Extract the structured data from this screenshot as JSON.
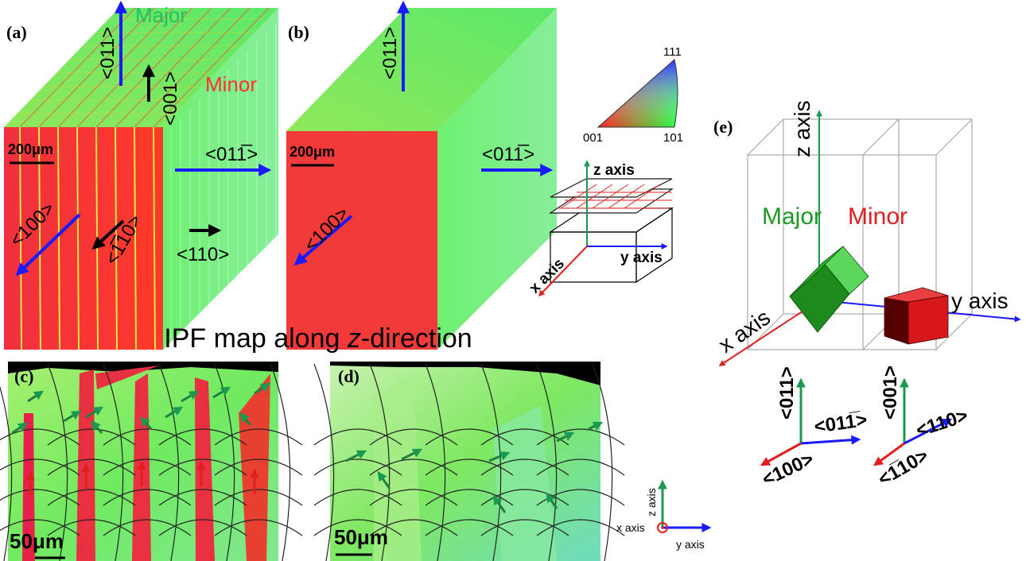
{
  "panel_a": {
    "label": "(a)",
    "major": "Major",
    "minor": "Minor",
    "dir_top": "<011>",
    "dir_minor_top": "<001>",
    "dir_right": "<011̅>",
    "dir_minor_right": "<110>",
    "dir_front": "<100>",
    "dir_minor_front": "<1̅10>",
    "scale_bar": "200μm"
  },
  "panel_b": {
    "label": "(b)",
    "dir_top": "<011>",
    "dir_right": "<011̅>",
    "dir_front": "<100>",
    "scale_bar": "200μm"
  },
  "ipf_legend": {
    "corner_top": "111",
    "corner_left": "001",
    "corner_right": "101"
  },
  "sample_axes": {
    "z": "z axis",
    "x": "x axis",
    "y": "y axis"
  },
  "section_title": {
    "prefix": "IPF map along ",
    "italic": "z",
    "suffix": "-direction"
  },
  "panel_c": {
    "label": "(c)",
    "scale_bar": "50μm"
  },
  "panel_d": {
    "label": "(d)",
    "scale_bar": "50μm"
  },
  "view_axes": {
    "z": "z axis",
    "x": "x axis",
    "y": "y axis"
  },
  "panel_e": {
    "label": "(e)",
    "z": "z axis",
    "x": "x axis",
    "y": "y axis",
    "major": "Major",
    "minor": "Minor",
    "major_z": "<011>",
    "major_y": "<011̅>",
    "major_x": "<100>",
    "minor_z": "<001>",
    "minor_y": "<110>",
    "minor_x": "<1̅10>"
  }
}
